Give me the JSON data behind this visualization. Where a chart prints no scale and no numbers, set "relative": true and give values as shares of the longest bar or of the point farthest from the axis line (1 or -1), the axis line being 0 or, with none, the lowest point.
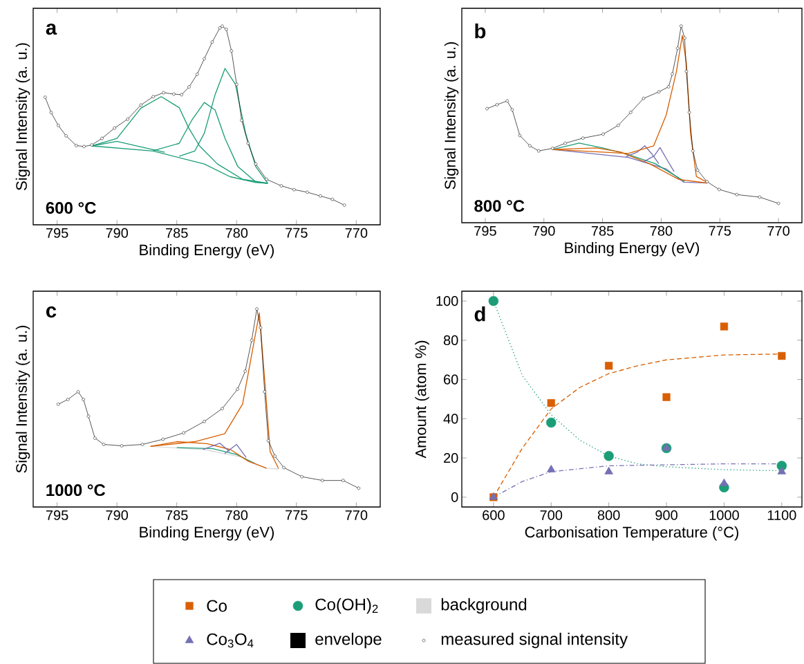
{
  "chart_data": [
    {
      "type": "line",
      "title": "a",
      "annotations": [
        "600 °C"
      ],
      "xlabel": "Binding Energy (eV)",
      "ylabel": "Signal Intensity (a. u.)",
      "relative": true,
      "xlim": [
        797,
        768
      ],
      "xticks": [
        795,
        790,
        785,
        780,
        775,
        770
      ],
      "series": [
        {
          "color": "#1b9e77",
          "x": [
            792.1,
            786.97,
            782.7,
            780.54,
            778.4,
            777.4
          ],
          "values": [
            0.397,
            0.371,
            0.306,
            0.242,
            0.213,
            0.209
          ]
        },
        {
          "color": "#1b9e77",
          "x": [
            792.1,
            790.0,
            788.0,
            786.0
          ],
          "values": [
            0.397,
            0.42,
            0.392,
            0.365
          ]
        },
        {
          "color": "#1b9e77",
          "x": [
            792.1,
            790.0,
            788.0,
            786.3,
            784.8,
            784.0,
            783.1,
            781.6,
            779.5,
            777.4
          ],
          "values": [
            0.397,
            0.435,
            0.587,
            0.645,
            0.59,
            0.487,
            0.397,
            0.306,
            0.229,
            0.209
          ]
        },
        {
          "color": "#1b9e77",
          "x": [
            786.97,
            784.8,
            783.75,
            782.7,
            781.8,
            780.97,
            779.9,
            778.4,
            777.4
          ],
          "values": [
            0.373,
            0.41,
            0.526,
            0.616,
            0.578,
            0.435,
            0.293,
            0.216,
            0.209
          ]
        },
        {
          "color": "#1b9e77",
          "x": [
            784.8,
            783.5,
            782.7,
            781.8,
            780.97,
            780.1,
            779.25,
            778.4,
            777.4
          ],
          "values": [
            0.345,
            0.371,
            0.461,
            0.655,
            0.787,
            0.707,
            0.461,
            0.293,
            0.209
          ]
        },
        {
          "color": "#000000",
          "x": [
            796.0,
            795.5,
            794.9,
            794.25,
            793.4,
            792.75,
            792.1,
            791.25,
            790.2,
            789.1,
            788.0,
            786.97,
            786.1,
            785.25,
            784.6,
            783.97,
            783.3,
            782.7,
            782.04,
            781.4,
            781.2,
            780.86,
            780.43,
            780.0,
            779.58,
            779.04,
            778.4,
            777.5,
            776.26,
            775.2,
            774.1,
            773.0,
            772.0,
            771.0
          ],
          "values": [
            0.642,
            0.565,
            0.5,
            0.448,
            0.399,
            0.394,
            0.402,
            0.435,
            0.487,
            0.532,
            0.603,
            0.645,
            0.665,
            0.658,
            0.655,
            0.694,
            0.758,
            0.836,
            0.92,
            0.991,
            1.0,
            0.984,
            0.875,
            0.707,
            0.526,
            0.41,
            0.306,
            0.229,
            0.196,
            0.177,
            0.164,
            0.145,
            0.128,
            0.099
          ]
        },
        {
          "type": "scatter",
          "marker": "circle",
          "color": "#000000",
          "x": [
            796.0,
            795.5,
            794.9,
            794.25,
            793.4,
            792.75,
            792.1,
            791.25,
            790.2,
            789.1,
            788.0,
            786.97,
            786.1,
            785.25,
            784.6,
            783.97,
            783.3,
            782.7,
            782.04,
            781.4,
            781.2,
            780.86,
            780.43,
            780.0,
            779.58,
            779.04,
            778.4,
            777.5,
            776.26,
            775.2,
            774.1,
            773.0,
            772.0,
            771.0
          ],
          "values": [
            0.642,
            0.565,
            0.5,
            0.448,
            0.399,
            0.394,
            0.402,
            0.435,
            0.487,
            0.532,
            0.603,
            0.645,
            0.665,
            0.658,
            0.655,
            0.694,
            0.758,
            0.836,
            0.92,
            0.991,
            1.0,
            0.984,
            0.875,
            0.707,
            0.526,
            0.41,
            0.306,
            0.229,
            0.196,
            0.177,
            0.164,
            0.145,
            0.128,
            0.099
          ]
        }
      ]
    },
    {
      "type": "line",
      "title": "b",
      "annotations": [
        "800 °C"
      ],
      "xlabel": "Binding Energy (eV)",
      "ylabel": "Signal Intensity (a. u.)",
      "relative": true,
      "xlim": [
        797,
        768
      ],
      "xticks": [
        795,
        790,
        785,
        780,
        775,
        770
      ],
      "series": [
        {
          "color": "#7570b3",
          "x": [
            789.26,
            782.8,
            779.6,
            778.07,
            776.1
          ],
          "values": [
            0.372,
            0.332,
            0.274,
            0.206,
            0.202
          ]
        },
        {
          "color": "#1b9e77",
          "x": [
            789.26,
            787.0,
            785.0,
            783.0,
            780.5,
            778.0
          ],
          "values": [
            0.372,
            0.405,
            0.38,
            0.35,
            0.3,
            0.21
          ]
        },
        {
          "color": "#d95f02",
          "x": [
            789.26,
            785.5,
            783.5,
            781.0,
            778.5,
            776.1
          ],
          "values": [
            0.372,
            0.38,
            0.36,
            0.3,
            0.22,
            0.202
          ]
        },
        {
          "color": "#7570b3",
          "x": [
            783.0,
            782.0,
            781.4,
            780.8,
            780.2
          ],
          "values": [
            0.335,
            0.36,
            0.391,
            0.35,
            0.3
          ]
        },
        {
          "color": "#7570b3",
          "x": [
            781.5,
            780.6,
            780.1,
            779.5,
            778.9
          ],
          "values": [
            0.31,
            0.34,
            0.382,
            0.32,
            0.26
          ]
        },
        {
          "color": "#d95f02",
          "x": [
            789.26,
            782.8,
            780.64,
            779.57,
            778.7,
            778.2,
            777.85,
            777.5,
            777.0,
            776.1
          ],
          "values": [
            0.372,
            0.352,
            0.391,
            0.548,
            0.769,
            0.952,
            0.808,
            0.456,
            0.235,
            0.206
          ]
        },
        {
          "color": "#000000",
          "x": [
            794.85,
            794.0,
            793.13,
            792.7,
            792.05,
            791.2,
            790.44,
            789.26,
            788.18,
            786.67,
            784.95,
            783.66,
            782.6,
            781.5,
            780.2,
            779.37,
            779.05,
            778.6,
            778.3,
            778.0,
            777.85,
            777.6,
            777.3,
            776.9,
            776.1,
            775.06,
            773.55,
            771.6,
            770.0
          ],
          "values": [
            0.58,
            0.6,
            0.619,
            0.574,
            0.443,
            0.391,
            0.365,
            0.378,
            0.404,
            0.43,
            0.45,
            0.495,
            0.561,
            0.632,
            0.665,
            0.691,
            0.756,
            0.887,
            1.0,
            0.939,
            0.769,
            0.561,
            0.365,
            0.267,
            0.209,
            0.169,
            0.143,
            0.13,
            0.098
          ]
        },
        {
          "type": "scatter",
          "marker": "circle",
          "color": "#000000",
          "x": [
            794.85,
            794.0,
            793.13,
            792.7,
            792.05,
            791.2,
            790.44,
            789.26,
            788.18,
            786.67,
            784.95,
            783.66,
            782.6,
            781.5,
            780.2,
            779.37,
            779.05,
            778.6,
            778.3,
            778.0,
            777.85,
            777.6,
            777.3,
            776.9,
            776.1,
            775.06,
            773.55,
            771.6,
            770.0
          ],
          "values": [
            0.58,
            0.6,
            0.619,
            0.574,
            0.443,
            0.391,
            0.365,
            0.378,
            0.404,
            0.43,
            0.45,
            0.495,
            0.561,
            0.632,
            0.665,
            0.691,
            0.756,
            0.887,
            1.0,
            0.939,
            0.769,
            0.561,
            0.365,
            0.267,
            0.209,
            0.169,
            0.143,
            0.13,
            0.098
          ]
        }
      ]
    },
    {
      "type": "line",
      "title": "c",
      "annotations": [
        "1000 °C"
      ],
      "xlabel": "Binding Energy (eV)",
      "ylabel": "Signal Intensity (a. u.)",
      "relative": true,
      "legend": "bottom",
      "xlim": [
        797,
        768
      ],
      "xticks": [
        795,
        790,
        785,
        780,
        775,
        770
      ],
      "series": [
        {
          "name": "background",
          "color": "#d9d9d9",
          "x": [
            787.2,
            782.7,
            779.5,
            777.56,
            776.5
          ],
          "values": [
            0.306,
            0.29,
            0.251,
            0.195,
            0.192
          ]
        },
        {
          "color": "#1b9e77",
          "x": [
            785.0,
            782.0,
            780.0,
            778.5
          ],
          "values": [
            0.3,
            0.295,
            0.265,
            0.22
          ]
        },
        {
          "color": "#d95f02",
          "x": [
            787.2,
            785.0,
            782.5,
            780.5,
            779.0,
            777.5
          ],
          "values": [
            0.306,
            0.33,
            0.32,
            0.29,
            0.23,
            0.196
          ]
        },
        {
          "color": "#7570b3",
          "x": [
            782.8,
            781.4,
            780.6
          ],
          "values": [
            0.29,
            0.322,
            0.28
          ]
        },
        {
          "color": "#7570b3",
          "x": [
            781.0,
            780.0,
            779.2
          ],
          "values": [
            0.27,
            0.316,
            0.25
          ]
        },
        {
          "color": "#d95f02",
          "x": [
            787.2,
            783.5,
            781.0,
            779.5,
            778.8,
            778.1,
            777.6,
            777.2,
            776.5
          ],
          "values": [
            0.306,
            0.33,
            0.37,
            0.52,
            0.75,
            0.98,
            0.6,
            0.28,
            0.195
          ]
        },
        {
          "name": "envelope",
          "color": "#000000",
          "x": [
            794.91,
            794.1,
            793.24,
            792.8,
            792.38,
            791.84,
            791.1,
            789.6,
            787.87,
            786.15,
            784.43,
            782.7,
            781.2,
            779.92,
            779.28,
            778.74,
            778.31,
            778.0,
            777.66,
            777.35,
            776.8,
            776.06,
            774.55,
            772.83,
            771.1,
            769.8
          ],
          "values": [
            0.519,
            0.543,
            0.582,
            0.543,
            0.458,
            0.348,
            0.316,
            0.309,
            0.316,
            0.342,
            0.374,
            0.432,
            0.497,
            0.595,
            0.686,
            0.842,
            1.0,
            0.906,
            0.582,
            0.335,
            0.257,
            0.199,
            0.153,
            0.134,
            0.134,
            0.095
          ]
        },
        {
          "name": "measured signal intensity",
          "type": "scatter",
          "marker": "circle",
          "color": "#000000",
          "x": [
            794.91,
            794.1,
            793.24,
            792.8,
            792.38,
            791.84,
            791.1,
            789.6,
            787.87,
            786.15,
            784.43,
            782.7,
            781.2,
            779.92,
            779.28,
            778.74,
            778.31,
            778.0,
            777.66,
            777.35,
            776.8,
            776.06,
            774.55,
            772.83,
            771.1,
            769.8
          ],
          "values": [
            0.519,
            0.543,
            0.582,
            0.543,
            0.458,
            0.348,
            0.316,
            0.309,
            0.316,
            0.342,
            0.374,
            0.432,
            0.497,
            0.595,
            0.686,
            0.842,
            1.0,
            0.906,
            0.582,
            0.335,
            0.257,
            0.199,
            0.153,
            0.134,
            0.134,
            0.095
          ]
        }
      ]
    },
    {
      "type": "scatter",
      "title": "d",
      "xlabel": "Carbonisation Temperature (°C)",
      "ylabel": "Amount (atom %)",
      "legend": "bottom",
      "x": [
        600,
        700,
        800,
        900,
        1000,
        1100
      ],
      "xlim": [
        545,
        1135
      ],
      "xticks": [
        600,
        700,
        800,
        900,
        1000,
        1100
      ],
      "ylim": [
        -5,
        105
      ],
      "yticks": [
        0,
        20,
        40,
        60,
        80,
        100
      ],
      "series": [
        {
          "type": "line",
          "line_style": "dashed",
          "color": "#d95f02",
          "x": [
            600,
            650,
            700,
            750,
            800,
            850,
            900,
            1000,
            1100
          ],
          "values": [
            0,
            25,
            45,
            56,
            63,
            67,
            70,
            72.5,
            73
          ]
        },
        {
          "type": "line",
          "line_style": "dotted",
          "color": "#1b9e77",
          "x": [
            600,
            650,
            700,
            750,
            800,
            850,
            900,
            1000,
            1100
          ],
          "values": [
            100,
            62,
            42,
            29,
            21,
            17,
            15.5,
            14,
            13.5
          ]
        },
        {
          "type": "line",
          "line_style": "dashdot",
          "color": "#7570b3",
          "x": [
            600,
            650,
            700,
            800,
            900,
            1000,
            1100
          ],
          "values": [
            0,
            8,
            13,
            16,
            16.5,
            17,
            17
          ]
        },
        {
          "name": "Co",
          "marker": "square",
          "color": "#d95f02",
          "values": [
            0,
            48,
            67,
            51,
            87,
            72
          ]
        },
        {
          "name": "Co(OH)$_{2}$",
          "marker": "circle",
          "color": "#1b9e77",
          "values": [
            100,
            38,
            21,
            25,
            5,
            16
          ]
        },
        {
          "name": "Co$_{3}$O$_{4}$",
          "marker": "triangle",
          "color": "#7570b3",
          "values": [
            0,
            14,
            13,
            25,
            7,
            13
          ]
        }
      ]
    }
  ]
}
